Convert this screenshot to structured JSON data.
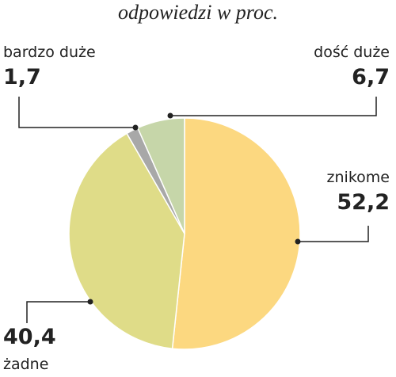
{
  "chart_data": {
    "type": "pie",
    "title": "odpowiedzi w proc.",
    "categories": [
      "znikome",
      "żadne",
      "bardzo duże",
      "dość duże"
    ],
    "values": [
      52.2,
      40.4,
      1.7,
      6.7
    ],
    "value_labels": [
      "52,2",
      "40,4",
      "1,7",
      "6,7"
    ],
    "colors": [
      "#fcd880",
      "#dfdc88",
      "#a8a8a8",
      "#c6d6a9"
    ]
  }
}
